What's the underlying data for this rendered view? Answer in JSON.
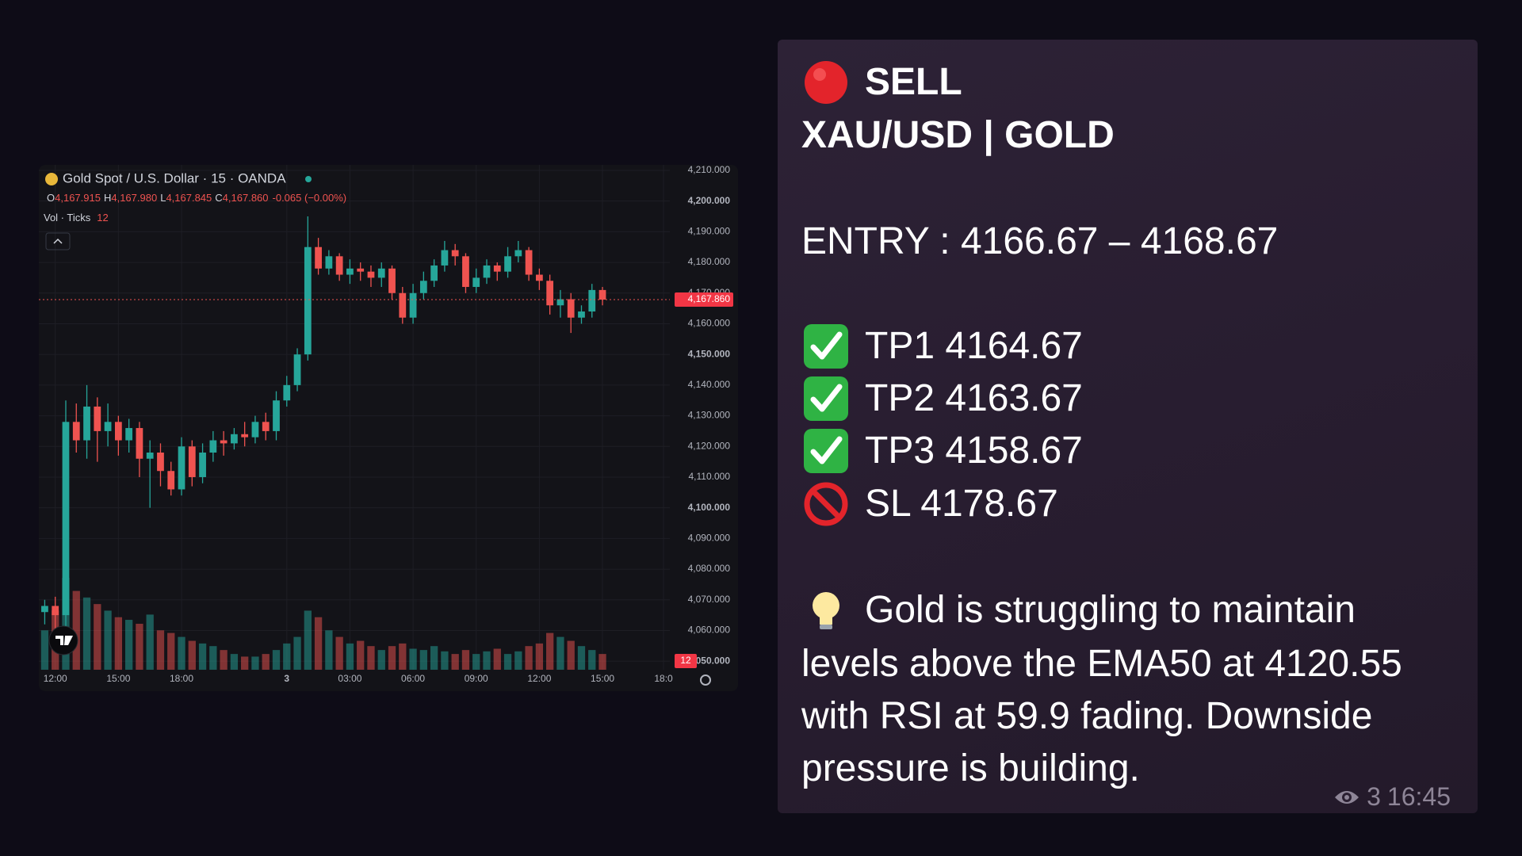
{
  "chart_data": {
    "type": "candlestick",
    "title": "Gold Spot / U.S. Dollar · 15 · OANDA",
    "ohlc": {
      "o_label": "O",
      "o": "4,167.915",
      "h_label": "H",
      "h": "4,167.980",
      "l_label": "L",
      "l": "4,167.845",
      "c_label": "C",
      "c": "4,167.860",
      "change": "-0.065 (−0.00%)"
    },
    "volume_label": "Vol · Ticks",
    "x": [
      -0.5,
      0,
      0.5,
      1,
      1.5,
      2,
      2.5,
      3,
      3.5,
      4,
      4.5,
      5,
      5.5,
      6,
      6.5,
      7,
      7.5,
      8,
      8.5,
      9,
      9.5,
      10,
      10.5,
      11,
      11.5,
      12,
      12.5,
      13,
      13.5,
      14,
      14.5,
      15,
      15.5,
      16,
      16.5,
      17,
      17.5,
      18,
      18.5,
      19,
      19.5,
      20,
      20.5,
      21,
      21.5,
      22,
      22.5,
      23,
      23.5,
      24,
      24.5,
      25,
      25.5,
      26
    ],
    "open": [
      4066,
      4068,
      4065,
      4128,
      4122,
      4133,
      4125,
      4128,
      4122,
      4126,
      4116,
      4118,
      4112,
      4106,
      4120,
      4110,
      4118,
      4122,
      4121,
      4124,
      4123,
      4128,
      4125,
      4135,
      4140,
      4150,
      4185,
      4178,
      4182,
      4176,
      4178,
      4177,
      4175,
      4178,
      4170,
      4162,
      4170,
      4174,
      4179,
      4184,
      4182,
      4172,
      4175,
      4179,
      4177,
      4182,
      4184,
      4176,
      4174,
      4166,
      4168,
      4162,
      4164,
      4171
    ],
    "high": [
      4070,
      4071,
      4135,
      4134,
      4140,
      4136,
      4134,
      4130,
      4129,
      4128,
      4122,
      4121,
      4115,
      4123,
      4122,
      4121,
      4125,
      4125,
      4126,
      4128,
      4130,
      4131,
      4138,
      4143,
      4152,
      4195,
      4188,
      4184,
      4183,
      4181,
      4180,
      4179,
      4180,
      4179,
      4172,
      4173,
      4177,
      4181,
      4187,
      4186,
      4183,
      4178,
      4181,
      4180,
      4185,
      4187,
      4185,
      4178,
      4176,
      4171,
      4170,
      4166,
      4173,
      4172
    ],
    "low": [
      4062,
      4060,
      4058,
      4118,
      4116,
      4115,
      4120,
      4117,
      4118,
      4110,
      4100,
      4107,
      4104,
      4104,
      4107,
      4108,
      4115,
      4117,
      4119,
      4120,
      4121,
      4122,
      4122,
      4133,
      4138,
      4148,
      4176,
      4176,
      4174,
      4173,
      4174,
      4172,
      4172,
      4168,
      4160,
      4160,
      4168,
      4172,
      4177,
      4179,
      4170,
      4170,
      4173,
      4174,
      4175,
      4180,
      4174,
      4171,
      4163,
      4162,
      4157,
      4160,
      4162,
      4166
    ],
    "close": [
      4068,
      4065,
      4128,
      4122,
      4133,
      4125,
      4128,
      4122,
      4126,
      4116,
      4118,
      4112,
      4106,
      4120,
      4110,
      4118,
      4122,
      4121,
      4124,
      4123,
      4128,
      4125,
      4135,
      4140,
      4150,
      4185,
      4178,
      4182,
      4176,
      4178,
      4177,
      4175,
      4178,
      4170,
      4162,
      4170,
      4174,
      4179,
      4184,
      4182,
      4172,
      4175,
      4179,
      4177,
      4182,
      4184,
      4176,
      4174,
      4166,
      4168,
      4162,
      4164,
      4171,
      4167.86
    ],
    "volume": [
      30,
      45,
      70,
      60,
      55,
      50,
      45,
      40,
      38,
      35,
      42,
      30,
      28,
      25,
      22,
      20,
      18,
      15,
      12,
      10,
      10,
      12,
      15,
      20,
      25,
      45,
      40,
      30,
      25,
      20,
      22,
      18,
      15,
      18,
      20,
      16,
      15,
      18,
      14,
      12,
      15,
      12,
      14,
      16,
      12,
      14,
      18,
      20,
      28,
      25,
      22,
      18,
      15,
      12
    ],
    "up_color": "#26a69a",
    "down_color": "#ef5350",
    "ylim": [
      4047.2,
      4211.8
    ],
    "yticks": [
      {
        "value": 4210,
        "label": "4,210.000"
      },
      {
        "value": 4200,
        "label": "4,200.000"
      },
      {
        "value": 4190,
        "label": "4,190.000"
      },
      {
        "value": 4180,
        "label": "4,180.000"
      },
      {
        "value": 4170,
        "label": "4,170.000"
      },
      {
        "value": 4160,
        "label": "4,160.000"
      },
      {
        "value": 4150,
        "label": "4,150.000"
      },
      {
        "value": 4140,
        "label": "4,140.000"
      },
      {
        "value": 4130,
        "label": "4,130.000"
      },
      {
        "value": 4120,
        "label": "4,120.000"
      },
      {
        "value": 4110,
        "label": "4,110.000"
      },
      {
        "value": 4100,
        "label": "4,100.000"
      },
      {
        "value": 4090,
        "label": "4,090.000"
      },
      {
        "value": 4080,
        "label": "4,080.000"
      },
      {
        "value": 4070,
        "label": "4,070.000"
      },
      {
        "value": 4060,
        "label": "4,060.000"
      },
      {
        "value": 4050,
        "label": "4,050.000"
      }
    ],
    "xlim": [
      -0.78,
      29.2
    ],
    "xticks": [
      {
        "value": 0,
        "label": "12:00"
      },
      {
        "value": 3,
        "label": "15:00"
      },
      {
        "value": 6,
        "label": "18:00"
      },
      {
        "value": 11,
        "label": "3"
      },
      {
        "value": 14,
        "label": "03:00"
      },
      {
        "value": 17,
        "label": "06:00"
      },
      {
        "value": 20,
        "label": "09:00"
      },
      {
        "value": 23,
        "label": "12:00"
      },
      {
        "value": 26,
        "label": "15:00"
      },
      {
        "value": 28.9,
        "label": "18:0"
      }
    ],
    "last_price": {
      "value": 4167.86,
      "label": "4,167.860"
    },
    "grid": true
  },
  "message": {
    "title": "SELL",
    "pair": "XAU/USD | GOLD",
    "entry": "ENTRY : 4166.67 – 4168.67",
    "targets": [
      "TP1 4164.67",
      "TP2 4163.67",
      "TP3 4158.67"
    ],
    "stop": "SL 4178.67",
    "analysis": [
      "Gold is struggling to maintain",
      "levels above the EMA50 at 4120.55",
      "with RSI at 59.9 fading. Downside",
      "pressure is building."
    ],
    "views": 3,
    "time": "16:45"
  }
}
